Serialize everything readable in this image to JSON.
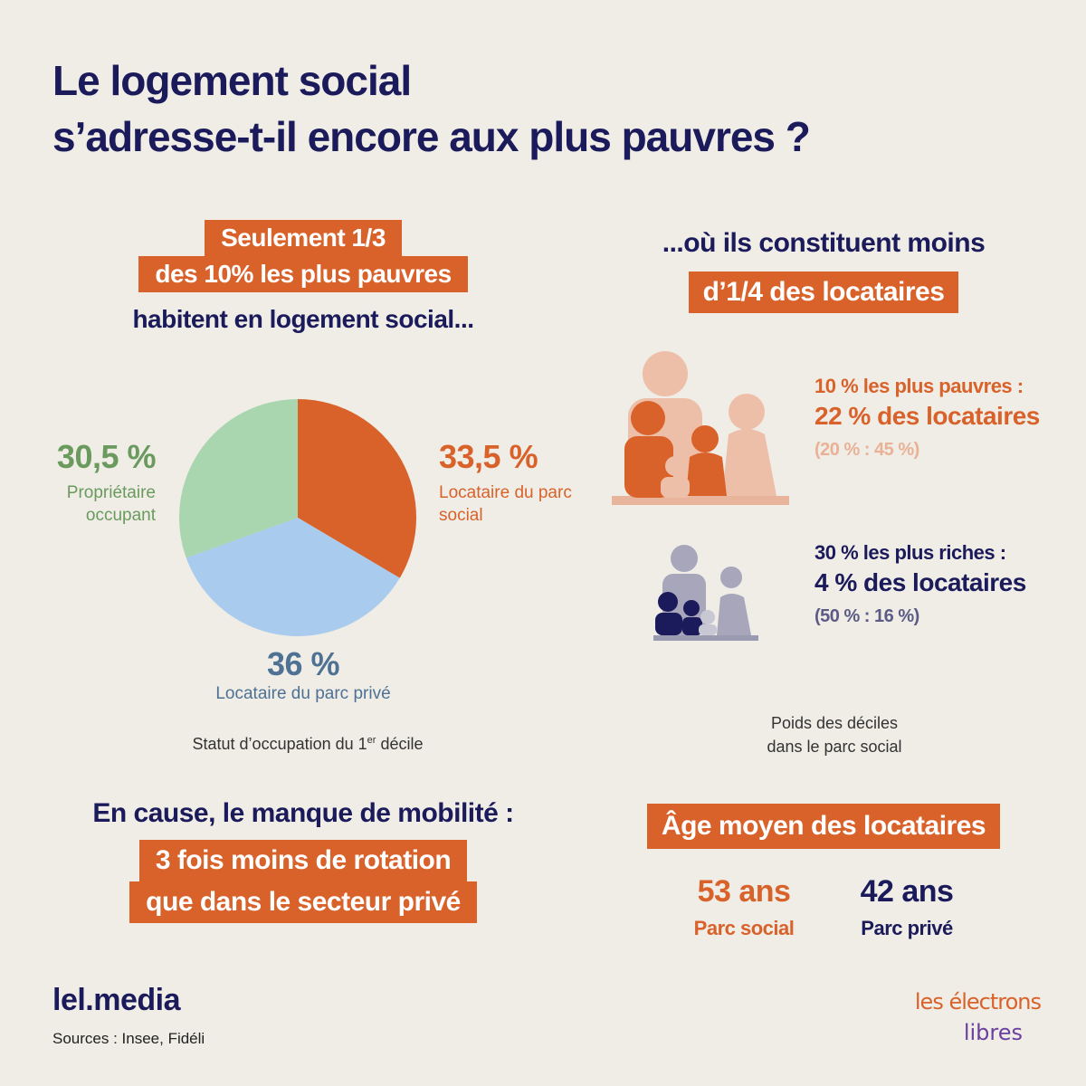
{
  "title_lines": [
    "Le logement social",
    "s’adresse-t-il encore aux plus pauvres ?"
  ],
  "left_header": {
    "highlight": [
      "Seulement 1/3",
      "des 10% les plus pauvres"
    ],
    "text": "habitent en logement social..."
  },
  "chart_data": {
    "type": "pie",
    "categories": [
      "Locataire du parc social",
      "Locataire du parc privé",
      "Propriétaire occupant"
    ],
    "values": [
      33.5,
      36,
      30.5
    ],
    "value_labels": [
      "33,5 %",
      "36 %",
      "30,5 %"
    ],
    "colors": [
      "#d9622b",
      "#a9cbee",
      "#a9d6ae"
    ],
    "caption": {
      "text": "Statut d’occupation du 1",
      "sup": "er",
      "end": " décile"
    }
  },
  "right_header": {
    "text": "...où ils constituent moins",
    "highlight": "d’1/4 des locataires"
  },
  "deciles": [
    {
      "label": "10 % les plus pauvres :",
      "value": "22 % des locataires",
      "note": "(20 % : 45 %)"
    },
    {
      "label": "30 % les plus riches :",
      "value": "4 % des locataires",
      "note": "(50 % : 16 %)"
    }
  ],
  "deciles_caption": "Poids des déciles\ndans le parc social",
  "mobility": {
    "text": "En cause, le manque de mobilité :",
    "highlight": [
      "3 fois moins de rotation",
      "que dans le secteur privé"
    ]
  },
  "age": {
    "title": "Âge moyen des locataires",
    "items": [
      {
        "value": "53 ans",
        "label": "Parc social"
      },
      {
        "value": "42 ans",
        "label": "Parc privé"
      }
    ]
  },
  "footer": {
    "site": "lel.media",
    "sources": "Sources : Insee, Fidéli",
    "logo": [
      "les électrons",
      "libres"
    ]
  }
}
